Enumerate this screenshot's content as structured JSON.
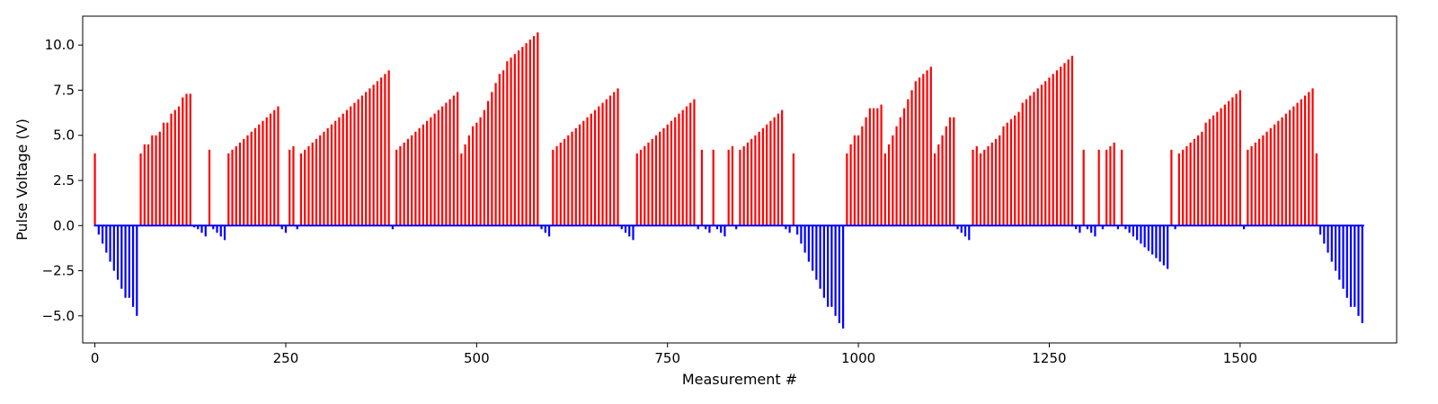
{
  "chart_data": {
    "type": "bar",
    "title": "",
    "xlabel": "Measurement #",
    "ylabel": "Pulse Voltage (V)",
    "xlim": [
      -16,
      1705
    ],
    "ylim": [
      -6.5,
      11.6
    ],
    "grid": false,
    "legend": "none",
    "colors": {
      "positive": "#ff0000",
      "negative": "#0000ff",
      "axis": "#000000"
    },
    "x_ticks": [
      {
        "value": 0,
        "label": "0"
      },
      {
        "value": 250,
        "label": "250"
      },
      {
        "value": 500,
        "label": "500"
      },
      {
        "value": 750,
        "label": "750"
      },
      {
        "value": 1000,
        "label": "1000"
      },
      {
        "value": 1250,
        "label": "1250"
      },
      {
        "value": 1500,
        "label": "1500"
      }
    ],
    "y_ticks": [
      {
        "value": -5,
        "label": "−5.0"
      },
      {
        "value": -2.5,
        "label": "−2.5"
      },
      {
        "value": 0,
        "label": "0.0"
      },
      {
        "value": 2.5,
        "label": "2.5"
      },
      {
        "value": 5,
        "label": "5.0"
      },
      {
        "value": 7.5,
        "label": "7.5"
      },
      {
        "value": 10,
        "label": "10.0"
      }
    ],
    "x_start": 0,
    "x_step": 5,
    "values": [
      4.0,
      -0.5,
      -1.0,
      -1.5,
      -2.0,
      -2.5,
      -3.0,
      -3.5,
      -4.0,
      -4.0,
      -4.5,
      -5.0,
      4.0,
      4.5,
      4.5,
      5.0,
      5.0,
      5.2,
      5.7,
      5.7,
      6.2,
      6.4,
      6.6,
      7.1,
      7.3,
      7.3,
      -0.1,
      -0.2,
      -0.4,
      -0.6,
      4.2,
      -0.2,
      -0.4,
      -0.6,
      -0.8,
      4.0,
      4.2,
      4.4,
      4.6,
      4.8,
      5.0,
      5.2,
      5.4,
      5.6,
      5.8,
      6.0,
      6.2,
      6.4,
      6.6,
      -0.2,
      -0.4,
      4.2,
      4.4,
      -0.2,
      4.0,
      4.2,
      4.4,
      4.6,
      4.8,
      5.0,
      5.2,
      5.4,
      5.6,
      5.8,
      6.0,
      6.2,
      6.4,
      6.6,
      6.8,
      7.0,
      7.2,
      7.4,
      7.6,
      7.8,
      8.0,
      8.2,
      8.4,
      8.6,
      -0.2,
      4.2,
      4.4,
      4.6,
      4.8,
      5.0,
      5.2,
      5.4,
      5.6,
      5.8,
      6.0,
      6.2,
      6.4,
      6.6,
      6.8,
      7.0,
      7.2,
      7.4,
      4.0,
      4.5,
      5.0,
      5.5,
      5.7,
      6.0,
      6.4,
      6.9,
      7.4,
      7.9,
      8.4,
      8.6,
      9.1,
      9.3,
      9.5,
      9.7,
      9.9,
      10.1,
      10.3,
      10.5,
      10.7,
      -0.2,
      -0.4,
      -0.6,
      4.2,
      4.4,
      4.6,
      4.8,
      5.0,
      5.2,
      5.4,
      5.6,
      5.8,
      6.0,
      6.2,
      6.4,
      6.6,
      6.8,
      7.0,
      7.2,
      7.4,
      7.6,
      -0.2,
      -0.4,
      -0.6,
      -0.8,
      4.0,
      4.2,
      4.4,
      4.6,
      4.8,
      5.0,
      5.2,
      5.4,
      5.6,
      5.8,
      6.0,
      6.2,
      6.4,
      6.6,
      6.8,
      7.0,
      -0.2,
      4.2,
      -0.2,
      -0.4,
      4.2,
      -0.2,
      -0.4,
      -0.6,
      4.2,
      4.4,
      -0.2,
      4.2,
      4.4,
      4.6,
      4.8,
      5.0,
      5.2,
      5.4,
      5.6,
      5.8,
      6.0,
      6.2,
      6.4,
      -0.2,
      -0.4,
      4.0,
      -0.5,
      -1.0,
      -1.5,
      -2.0,
      -2.5,
      -3.0,
      -3.5,
      -4.0,
      -4.5,
      -4.5,
      -5.0,
      -5.4,
      -5.7,
      4.0,
      4.5,
      5.0,
      5.0,
      5.5,
      6.0,
      6.5,
      6.5,
      6.5,
      6.7,
      4.0,
      4.5,
      5.0,
      5.5,
      6.0,
      6.5,
      7.0,
      7.5,
      8.0,
      8.2,
      8.4,
      8.6,
      8.8,
      4.0,
      4.5,
      5.0,
      5.5,
      6.0,
      6.0,
      -0.2,
      -0.4,
      -0.6,
      -0.8,
      4.2,
      4.4,
      4.0,
      4.2,
      4.4,
      4.6,
      4.8,
      5.0,
      5.5,
      5.7,
      5.9,
      6.1,
      6.3,
      6.8,
      7.0,
      7.2,
      7.4,
      7.6,
      7.8,
      8.0,
      8.2,
      8.4,
      8.6,
      8.8,
      9.0,
      9.2,
      9.4,
      -0.2,
      -0.4,
      4.2,
      -0.2,
      -0.4,
      -0.6,
      4.2,
      -0.2,
      4.2,
      4.4,
      4.6,
      -0.2,
      4.2,
      -0.2,
      -0.4,
      -0.6,
      -0.8,
      -1.0,
      -1.2,
      -1.4,
      -1.6,
      -1.8,
      -2.0,
      -2.2,
      -2.4,
      4.2,
      -0.2,
      4.0,
      4.2,
      4.4,
      4.6,
      4.8,
      5.0,
      5.2,
      5.7,
      5.9,
      6.1,
      6.3,
      6.5,
      6.7,
      6.9,
      7.1,
      7.3,
      7.5,
      -0.2,
      4.2,
      4.4,
      4.6,
      4.8,
      5.0,
      5.2,
      5.4,
      5.6,
      5.8,
      6.0,
      6.2,
      6.4,
      6.6,
      6.8,
      7.0,
      7.2,
      7.4,
      7.6,
      4.0,
      -0.5,
      -1.0,
      -1.5,
      -2.0,
      -2.5,
      -3.0,
      -3.5,
      -4.0,
      -4.5,
      -4.5,
      -5.0,
      -5.4
    ]
  }
}
